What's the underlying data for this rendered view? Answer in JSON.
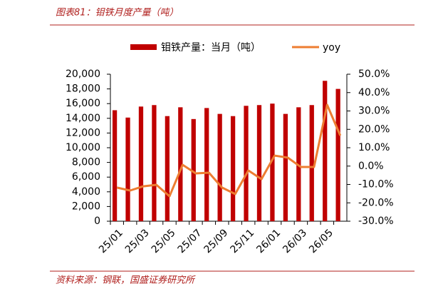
{
  "chart_data": {
    "type": "bar",
    "title": "图表81：钼铁月度产量（吨）",
    "source": "资料来源：钢联，国盛证券研究所",
    "categories": [
      "25/01",
      null,
      "25/03",
      null,
      "25/05",
      null,
      "25/07",
      null,
      "25/09",
      null,
      "25/11",
      null,
      "26/01",
      null,
      "26/03",
      null,
      "26/05",
      null
    ],
    "series": [
      {
        "name": "钼铁产量：当月（吨）",
        "type": "bar",
        "color": "#c00000",
        "values": [
          15100,
          14100,
          15600,
          15800,
          14300,
          15500,
          13900,
          15400,
          14600,
          14300,
          15700,
          15800,
          16000,
          14600,
          15500,
          15800,
          19100,
          18000
        ]
      },
      {
        "name": "yoy",
        "type": "line",
        "axis": "y2",
        "color": "#ed7d31",
        "values": [
          -11.7,
          -13.3,
          -11.0,
          -10.2,
          -16.4,
          0.7,
          -4.0,
          -3.6,
          -11.7,
          -15.2,
          -2.4,
          -7.1,
          5.7,
          4.6,
          -0.5,
          -0.5,
          33.3,
          16.6
        ]
      }
    ],
    "ylim": [
      0,
      20000
    ],
    "yticks": [
      0,
      {
        "value": 2000,
        "label": "2,000"
      },
      {
        "value": 4000,
        "label": "4,000"
      },
      {
        "value": 6000,
        "label": "6,000"
      },
      {
        "value": 8000,
        "label": "8,000"
      },
      {
        "value": 10000,
        "label": "10,000"
      },
      {
        "value": 12000,
        "label": "12,000"
      },
      {
        "value": 14000,
        "label": "14,000"
      },
      {
        "value": 16000,
        "label": "16,000"
      },
      {
        "value": 18000,
        "label": "18,000"
      },
      {
        "value": 20000,
        "label": "20,000"
      }
    ],
    "y2lim": [
      -30,
      50
    ],
    "y2ticks": [
      {
        "value": -30,
        "label": "-30.0%"
      },
      {
        "value": -20,
        "label": "-20.0%"
      },
      {
        "value": -10,
        "label": "-10.0%"
      },
      {
        "value": 0,
        "label": "0.0%"
      },
      {
        "value": 10,
        "label": "10.0%"
      },
      {
        "value": 20,
        "label": "20.0%"
      },
      {
        "value": 30,
        "label": "30.0%"
      },
      {
        "value": 40,
        "label": "40.0%"
      },
      {
        "value": 50,
        "label": "50.0%"
      }
    ],
    "grid": false
  }
}
